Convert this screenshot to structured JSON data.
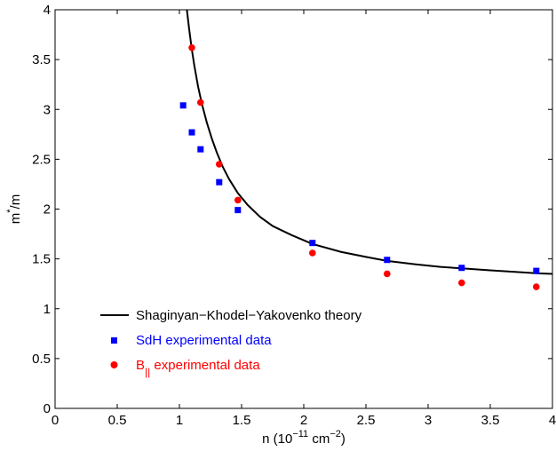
{
  "chart_data": {
    "type": "scatter",
    "xlabel": {
      "main": "n (10",
      "exp1": "−11",
      "mid": " cm",
      "exp2": "−2",
      "end": ")"
    },
    "ylabel": {
      "main": "m",
      "sup": "*",
      "end": "/m"
    },
    "xlim": [
      0,
      4
    ],
    "ylim": [
      0,
      4
    ],
    "xticks": [
      0,
      0.5,
      1,
      1.5,
      2,
      2.5,
      3,
      3.5,
      4
    ],
    "xtick_labels": [
      "0",
      "0.5",
      "1",
      "1.5",
      "2",
      "2.5",
      "3",
      "3.5",
      "4"
    ],
    "yticks": [
      0,
      0.5,
      1,
      1.5,
      2,
      2.5,
      3,
      3.5,
      4
    ],
    "ytick_labels": [
      "0",
      "0.5",
      "1",
      "1.5",
      "2",
      "2.5",
      "3",
      "3.5",
      "4"
    ],
    "grid": false,
    "legend_position": "bottom-left",
    "series": [
      {
        "name": "Shaginyan−Khodel−Yakovenko theory",
        "kind": "line",
        "color": "#000000",
        "x": [
          1.06,
          1.08,
          1.1,
          1.12,
          1.15,
          1.18,
          1.22,
          1.26,
          1.3,
          1.35,
          1.4,
          1.47,
          1.55,
          1.65,
          1.75,
          1.9,
          2.07,
          2.3,
          2.5,
          2.67,
          2.9,
          3.1,
          3.27,
          3.5,
          3.7,
          3.88,
          4.0
        ],
        "y": [
          4.0,
          3.79,
          3.6,
          3.44,
          3.23,
          3.06,
          2.87,
          2.71,
          2.57,
          2.42,
          2.3,
          2.16,
          2.04,
          1.92,
          1.83,
          1.74,
          1.65,
          1.57,
          1.52,
          1.48,
          1.445,
          1.42,
          1.405,
          1.385,
          1.37,
          1.355,
          1.35
        ]
      },
      {
        "name": "SdH experimental data",
        "kind": "square",
        "color": "#0000ff",
        "x": [
          1.03,
          1.1,
          1.17,
          1.32,
          1.47,
          2.07,
          2.67,
          3.27,
          3.87
        ],
        "y": [
          3.04,
          2.77,
          2.6,
          2.27,
          1.99,
          1.66,
          1.49,
          1.41,
          1.38
        ]
      },
      {
        "name": "B",
        "name_sub": "||",
        "name_rest": " experimental data",
        "kind": "circle",
        "color": "#ff0000",
        "x": [
          1.1,
          1.17,
          1.32,
          1.47,
          2.07,
          2.67,
          3.27,
          3.87
        ],
        "y": [
          3.62,
          3.07,
          2.45,
          2.09,
          1.56,
          1.35,
          1.26,
          1.22
        ]
      }
    ]
  }
}
